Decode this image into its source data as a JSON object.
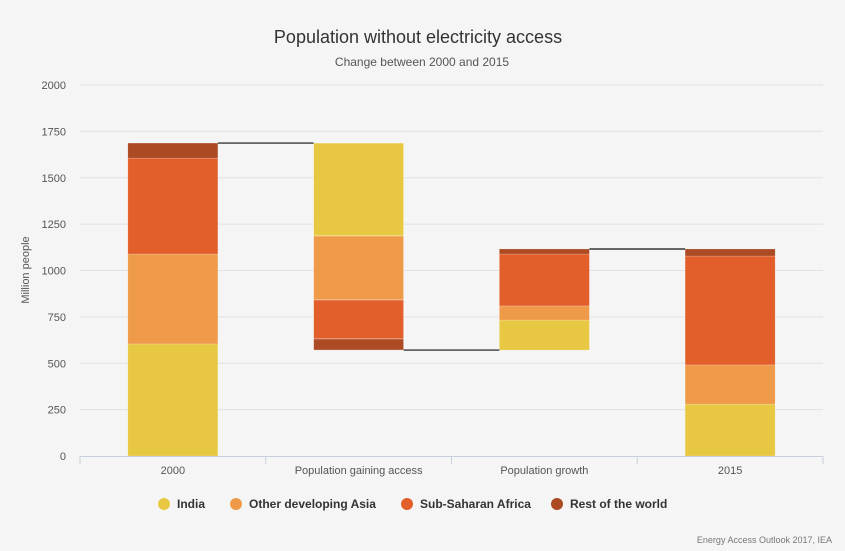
{
  "chart_data": {
    "type": "waterfall-stacked-bar",
    "title": "Population without electricity access",
    "subtitle": "Change between 2000 and 2015",
    "ylabel": "Million people",
    "xlabel": "",
    "ylim": [
      0,
      2000
    ],
    "yticks": [
      0,
      250,
      500,
      750,
      1000,
      1250,
      1500,
      1750,
      2000
    ],
    "grid": true,
    "legend_position": "bottom",
    "categories": [
      "2000",
      "Population gaining access",
      "Population growth",
      "2015"
    ],
    "category_kind": [
      "total",
      "decrease",
      "increase",
      "total"
    ],
    "series": [
      {
        "name": "India",
        "color": "#e8c842",
        "values": [
          604,
          501,
          162,
          280
        ]
      },
      {
        "name": "Other developing Asia",
        "color": "#ef9a49",
        "values": [
          485,
          345,
          76,
          211
        ]
      },
      {
        "name": "Sub-Saharan Africa",
        "color": "#e25f2b",
        "values": [
          517,
          210,
          280,
          587
        ]
      },
      {
        "name": "Rest of the world",
        "color": "#ab4a23",
        "values": [
          81,
          60,
          27,
          38
        ]
      }
    ],
    "credit": "Energy Access Outlook 2017, IEA"
  }
}
